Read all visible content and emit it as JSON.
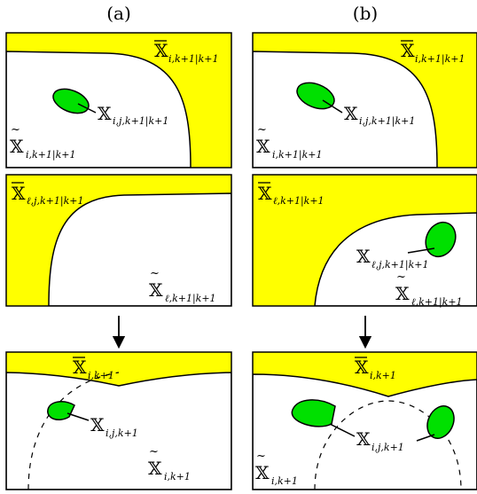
{
  "columns": {
    "a": {
      "caption": "(a)"
    },
    "b": {
      "caption": "(b)"
    }
  },
  "panels": {
    "a_top": {
      "bar_label": "X̅ i,k+1|k+1",
      "set_label": "X i,j,k+1|k+1",
      "tilde_label": "X̃ i,k+1|k+1"
    },
    "a_mid": {
      "bar_label": "X̅ ℓ,j,k+1|k+1",
      "tilde_label": "X̃ ℓ,k+1|k+1"
    },
    "a_bottom": {
      "bar_label": "X̅ i,k+1",
      "set_label": "X i,j,k+1",
      "tilde_label": "X̃ i,k+1"
    },
    "b_top": {
      "bar_label": "X̅ i,k+1|k+1",
      "set_label": "X i,j,k+1|k+1",
      "tilde_label": "X̃ i,k+1|k+1"
    },
    "b_mid": {
      "bar_label": "X̅ ℓ,k+1|k+1",
      "set_label": "X ℓ,j,k+1|k+1",
      "tilde_label": "X̃ ℓ,k+1|k+1"
    },
    "b_bottom": {
      "bar_label": "X̅ i,k+1",
      "set_label": "X i,j,k+1",
      "tilde_label": "X̃ i,k+1"
    }
  },
  "colors": {
    "yellow": "#ffff00",
    "green": "#00e000",
    "stroke": "#000000"
  }
}
